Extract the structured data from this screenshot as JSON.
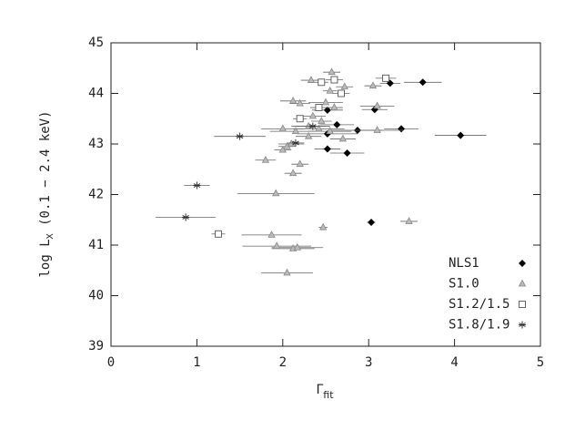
{
  "chart_data": {
    "type": "scatter",
    "x_label": [
      "Γ",
      "fit"
    ],
    "y_label": [
      "log L",
      "X",
      " (0.1 − 2.4 keV)"
    ],
    "xlim": [
      0,
      5
    ],
    "xticks": [
      0,
      1,
      2,
      3,
      4,
      5
    ],
    "ylim": [
      39,
      45
    ],
    "yticks": [
      39,
      40,
      41,
      42,
      43,
      44,
      45
    ],
    "legend": "lower right",
    "series": [
      {
        "name": "NLS1",
        "marker": "diamond",
        "color": "#000000",
        "x": [
          3.63,
          3.25,
          2.52,
          2.63,
          3.07,
          2.87,
          3.38,
          4.07,
          2.52,
          2.52,
          2.75,
          3.03
        ],
        "y": [
          44.22,
          44.2,
          43.67,
          43.38,
          43.68,
          43.27,
          43.3,
          43.17,
          43.2,
          42.9,
          42.82,
          41.45
        ],
        "xerr": [
          0.22,
          0.12,
          0.18,
          0.2,
          0.15,
          0.3,
          0.2,
          0.3,
          0.35,
          0.15,
          0.2,
          0.05
        ]
      },
      {
        "name": "S1.0",
        "marker": "triangle",
        "color": "#888888",
        "x": [
          2.57,
          2.33,
          2.72,
          2.12,
          2.2,
          2.5,
          2.6,
          2.35,
          2.45,
          3.1,
          3.05,
          2.55,
          2.0,
          2.15,
          2.3,
          2.42,
          2.55,
          2.3,
          2.05,
          2.1,
          2.0,
          2.2,
          1.8,
          2.12,
          1.92,
          2.7,
          3.1,
          2.47,
          3.47,
          1.87,
          1.93,
          2.12,
          2.17,
          2.05
        ],
        "y": [
          44.42,
          44.26,
          44.13,
          43.85,
          43.8,
          43.82,
          43.72,
          43.55,
          43.45,
          43.75,
          44.15,
          44.05,
          43.3,
          43.25,
          43.35,
          43.3,
          43.25,
          43.15,
          42.95,
          43.0,
          42.88,
          42.6,
          42.68,
          42.42,
          42.02,
          43.1,
          43.27,
          41.35,
          41.47,
          41.2,
          40.98,
          40.93,
          40.95,
          40.45
        ],
        "xerr": [
          0.1,
          0.12,
          0.1,
          0.15,
          0.12,
          0.2,
          0.1,
          0.15,
          0.12,
          0.2,
          0.1,
          0.08,
          0.25,
          0.3,
          0.2,
          0.3,
          0.25,
          0.15,
          0.1,
          0.15,
          0.1,
          0.1,
          0.12,
          0.1,
          0.45,
          0.15,
          0.3,
          0.05,
          0.1,
          0.35,
          0.4,
          0.25,
          0.3,
          0.3
        ]
      },
      {
        "name": "S1.2/1.5",
        "marker": "square",
        "color": "#555555",
        "x": [
          2.45,
          2.6,
          3.2,
          2.68,
          2.2,
          2.42,
          1.25
        ],
        "y": [
          44.22,
          44.27,
          44.3,
          44.0,
          43.5,
          43.72,
          41.22
        ],
        "xerr": [
          0.08,
          0.1,
          0.12,
          0.1,
          0.08,
          0.1,
          0.08
        ]
      },
      {
        "name": "S1.8/1.9",
        "marker": "star",
        "color": "#333333",
        "x": [
          1.5,
          1.0,
          0.87,
          2.15,
          2.35
        ],
        "y": [
          43.15,
          42.18,
          41.55,
          43.02,
          43.35
        ],
        "xerr": [
          0.3,
          0.15,
          0.35,
          0.1,
          0.2
        ]
      }
    ]
  }
}
